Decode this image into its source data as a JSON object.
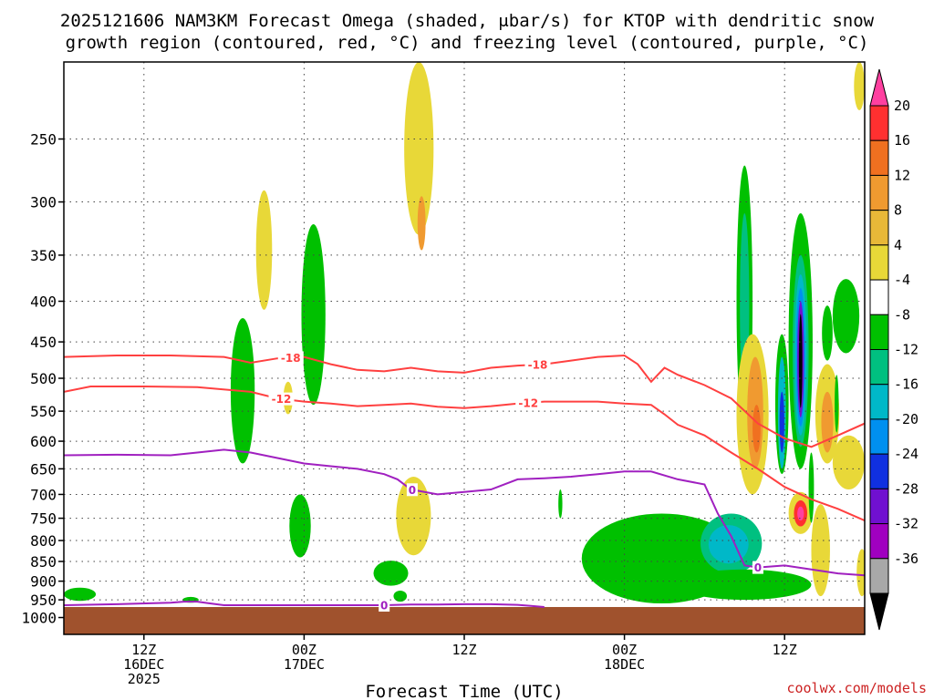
{
  "chart_data": {
    "type": "heatmap",
    "title_line1": "2025121606 NAM3KM Forecast Omega (shaded, μbar/s) for KTOP with dendritic snow",
    "title_line2": "growth region (contoured, red, °C) and freezing level (contoured, purple, °C)",
    "xlabel": "Forecast Time (UTC)",
    "credit": "coolwx.com/models",
    "x_range_hours": [
      0,
      60
    ],
    "x_ticks": [
      {
        "hour": 6,
        "lines": [
          "12Z",
          "16DEC",
          "2025"
        ]
      },
      {
        "hour": 18,
        "lines": [
          "00Z",
          "17DEC"
        ]
      },
      {
        "hour": 30,
        "lines": [
          "12Z"
        ]
      },
      {
        "hour": 42,
        "lines": [
          "00Z",
          "18DEC"
        ]
      },
      {
        "hour": 54,
        "lines": [
          "12Z"
        ]
      }
    ],
    "y_ticks_mb": [
      250,
      300,
      350,
      400,
      450,
      500,
      550,
      600,
      650,
      700,
      750,
      800,
      850,
      900,
      950,
      1000
    ],
    "y_range_mb": [
      200,
      1050
    ],
    "ground_mb": 970,
    "colorbar": {
      "labels": [
        "20",
        "16",
        "12",
        "8",
        "4",
        "-4",
        "-8",
        "-12",
        "-16",
        "-20",
        "-24",
        "-28",
        "-32",
        "-36"
      ],
      "colors": [
        "#ff40a0",
        "#ff3030",
        "#f07020",
        "#f09a30",
        "#e8b838",
        "#e8d838",
        "#ffffff",
        "#00c000",
        "#00c080",
        "#00b8c8",
        "#0090f0",
        "#1030e0",
        "#7010d0",
        "#a000c0",
        "#a8a8a8",
        "#000000"
      ]
    },
    "series": [
      {
        "name": "-18",
        "color": "#ff4040",
        "x": [
          0,
          4,
          8,
          12,
          14,
          16,
          18,
          20,
          22,
          24,
          26,
          28,
          30,
          32,
          34,
          36,
          38,
          40,
          42,
          43,
          44,
          45,
          46,
          48,
          50,
          52,
          54,
          56,
          58,
          60
        ],
        "y": [
          470,
          468,
          468,
          470,
          478,
          472,
          470,
          480,
          488,
          490,
          485,
          490,
          492,
          485,
          482,
          480,
          475,
          470,
          468,
          480,
          505,
          485,
          495,
          510,
          530,
          570,
          595,
          610,
          590,
          570
        ],
        "labels": [
          {
            "x": 17,
            "text": "-18"
          },
          {
            "x": 35.5,
            "text": "-18"
          }
        ]
      },
      {
        "name": "-12",
        "color": "#ff4040",
        "x": [
          0,
          2,
          6,
          10,
          14,
          16,
          18,
          20,
          22,
          24,
          26,
          28,
          30,
          32,
          34,
          36,
          38,
          40,
          42,
          44,
          45,
          46,
          48,
          50,
          52,
          54,
          56,
          58,
          60
        ],
        "y": [
          520,
          512,
          512,
          513,
          520,
          530,
          535,
          538,
          542,
          540,
          538,
          543,
          545,
          542,
          538,
          535,
          535,
          535,
          538,
          540,
          555,
          572,
          590,
          620,
          650,
          685,
          710,
          730,
          755
        ],
        "labels": [
          {
            "x": 16.3,
            "text": "-12"
          },
          {
            "x": 34.8,
            "text": "-12"
          }
        ]
      },
      {
        "name": "0-aloft",
        "color": "#a020c0",
        "x": [
          0,
          4,
          8,
          10,
          12,
          14,
          16,
          18,
          20,
          22,
          24,
          25,
          26,
          28,
          30,
          32,
          34,
          36,
          38,
          40,
          42,
          44,
          46,
          48,
          49,
          50,
          51,
          52,
          54,
          56,
          58,
          60
        ],
        "y": [
          625,
          624,
          625,
          620,
          615,
          620,
          630,
          640,
          645,
          650,
          660,
          670,
          690,
          700,
          695,
          690,
          670,
          668,
          665,
          660,
          655,
          655,
          670,
          680,
          740,
          790,
          860,
          865,
          860,
          870,
          880,
          885
        ],
        "labels": [
          {
            "x": 26.1,
            "text": "0"
          },
          {
            "x": 52,
            "text": "0"
          }
        ]
      },
      {
        "name": "0-surface",
        "color": "#a020c0",
        "x": [
          0,
          4,
          8,
          9,
          10,
          11,
          12,
          14,
          16,
          18,
          20,
          22,
          24,
          26,
          28,
          30,
          32,
          34,
          35,
          36
        ],
        "y": [
          965,
          962,
          958,
          955,
          955,
          960,
          965,
          965,
          965,
          965,
          965,
          965,
          965,
          963,
          963,
          962,
          962,
          964,
          967,
          970
        ],
        "labels": [
          {
            "x": 24,
            "text": "0"
          }
        ]
      }
    ],
    "shaded_regions": [
      {
        "color": "#e8d838",
        "cx": 15,
        "cy": 350,
        "rx": 0.6,
        "ry": 60
      },
      {
        "color": "#00c000",
        "cx": 18.7,
        "cy": 430,
        "rx": 0.9,
        "ry": 110
      },
      {
        "color": "#00c000",
        "cx": 13.4,
        "cy": 530,
        "rx": 0.9,
        "ry": 110
      },
      {
        "color": "#e8d838",
        "cx": 16.8,
        "cy": 530,
        "rx": 0.35,
        "ry": 25
      },
      {
        "color": "#e8d838",
        "cx": 26.6,
        "cy": 260,
        "rx": 1.1,
        "ry": 70
      },
      {
        "color": "#f09a30",
        "cx": 26.8,
        "cy": 320,
        "rx": 0.3,
        "ry": 25
      },
      {
        "color": "#00c000",
        "cx": 17.7,
        "cy": 770,
        "rx": 0.8,
        "ry": 70
      },
      {
        "color": "#e8d838",
        "cx": 26.2,
        "cy": 750,
        "rx": 1.3,
        "ry": 85
      },
      {
        "color": "#00c000",
        "cx": 24.5,
        "cy": 880,
        "rx": 1.3,
        "ry": 32
      },
      {
        "color": "#00c000",
        "cx": 37.2,
        "cy": 720,
        "rx": 0.15,
        "ry": 30
      },
      {
        "color": "#00c000",
        "cx": 1.2,
        "cy": 935,
        "rx": 1.2,
        "ry": 18
      },
      {
        "color": "#00c000",
        "cx": 9.5,
        "cy": 950,
        "rx": 0.6,
        "ry": 8
      },
      {
        "color": "#00c000",
        "cx": 25.2,
        "cy": 940,
        "rx": 0.5,
        "ry": 15
      },
      {
        "color": "#00c000",
        "cx": 44.8,
        "cy": 850,
        "rx": 6,
        "ry": 110
      },
      {
        "color": "#00c080",
        "cx": 50,
        "cy": 810,
        "rx": 2.3,
        "ry": 70
      },
      {
        "color": "#00b8c8",
        "cx": 49.8,
        "cy": 810,
        "rx": 1.5,
        "ry": 45
      },
      {
        "color": "#00c000",
        "cx": 51,
        "cy": 910,
        "rx": 5,
        "ry": 40
      },
      {
        "color": "#00c000",
        "cx": 51,
        "cy": 430,
        "rx": 0.6,
        "ry": 160
      },
      {
        "color": "#00c080",
        "cx": 51,
        "cy": 420,
        "rx": 0.35,
        "ry": 110
      },
      {
        "color": "#e8d838",
        "cx": 51.6,
        "cy": 570,
        "rx": 1.2,
        "ry": 130
      },
      {
        "color": "#f09a30",
        "cx": 51.8,
        "cy": 560,
        "rx": 0.6,
        "ry": 90
      },
      {
        "color": "#f07020",
        "cx": 51.9,
        "cy": 580,
        "rx": 0.3,
        "ry": 40
      },
      {
        "color": "#00c000",
        "cx": 55.2,
        "cy": 480,
        "rx": 0.9,
        "ry": 170
      },
      {
        "color": "#00c080",
        "cx": 55.2,
        "cy": 480,
        "rx": 0.6,
        "ry": 130
      },
      {
        "color": "#00b8c8",
        "cx": 55.2,
        "cy": 480,
        "rx": 0.45,
        "ry": 110
      },
      {
        "color": "#0090f0",
        "cx": 55.2,
        "cy": 480,
        "rx": 0.35,
        "ry": 95
      },
      {
        "color": "#7010d0",
        "cx": 55.2,
        "cy": 480,
        "rx": 0.25,
        "ry": 80
      },
      {
        "color": "#000000",
        "cx": 55.2,
        "cy": 480,
        "rx": 0.13,
        "ry": 65
      },
      {
        "color": "#00c000",
        "cx": 53.8,
        "cy": 550,
        "rx": 0.5,
        "ry": 110
      },
      {
        "color": "#00b8c8",
        "cx": 53.8,
        "cy": 560,
        "rx": 0.3,
        "ry": 90
      },
      {
        "color": "#1030e0",
        "cx": 53.8,
        "cy": 570,
        "rx": 0.18,
        "ry": 50
      },
      {
        "color": "#e8d838",
        "cx": 57.2,
        "cy": 560,
        "rx": 0.9,
        "ry": 80
      },
      {
        "color": "#f09a30",
        "cx": 57.2,
        "cy": 570,
        "rx": 0.45,
        "ry": 50
      },
      {
        "color": "#e8d838",
        "cx": 55.2,
        "cy": 740,
        "rx": 0.9,
        "ry": 45
      },
      {
        "color": "#ff3030",
        "cx": 55.2,
        "cy": 740,
        "rx": 0.5,
        "ry": 28
      },
      {
        "color": "#ff40a0",
        "cx": 55.2,
        "cy": 740,
        "rx": 0.25,
        "ry": 15
      },
      {
        "color": "#00c000",
        "cx": 58.6,
        "cy": 420,
        "rx": 1,
        "ry": 45
      },
      {
        "color": "#00c000",
        "cx": 57.2,
        "cy": 440,
        "rx": 0.4,
        "ry": 35
      },
      {
        "color": "#00c000",
        "cx": 57.9,
        "cy": 540,
        "rx": 0.15,
        "ry": 45
      },
      {
        "color": "#00c000",
        "cx": 56,
        "cy": 690,
        "rx": 0.2,
        "ry": 70
      },
      {
        "color": "#e8d838",
        "cx": 56.7,
        "cy": 830,
        "rx": 0.7,
        "ry": 110
      },
      {
        "color": "#e8d838",
        "cx": 58.8,
        "cy": 640,
        "rx": 1.2,
        "ry": 50
      },
      {
        "color": "#e8d838",
        "cx": 59.6,
        "cy": 210,
        "rx": 0.4,
        "ry": 20
      },
      {
        "color": "#e8d838",
        "cx": 59.8,
        "cy": 880,
        "rx": 0.4,
        "ry": 60
      }
    ]
  }
}
